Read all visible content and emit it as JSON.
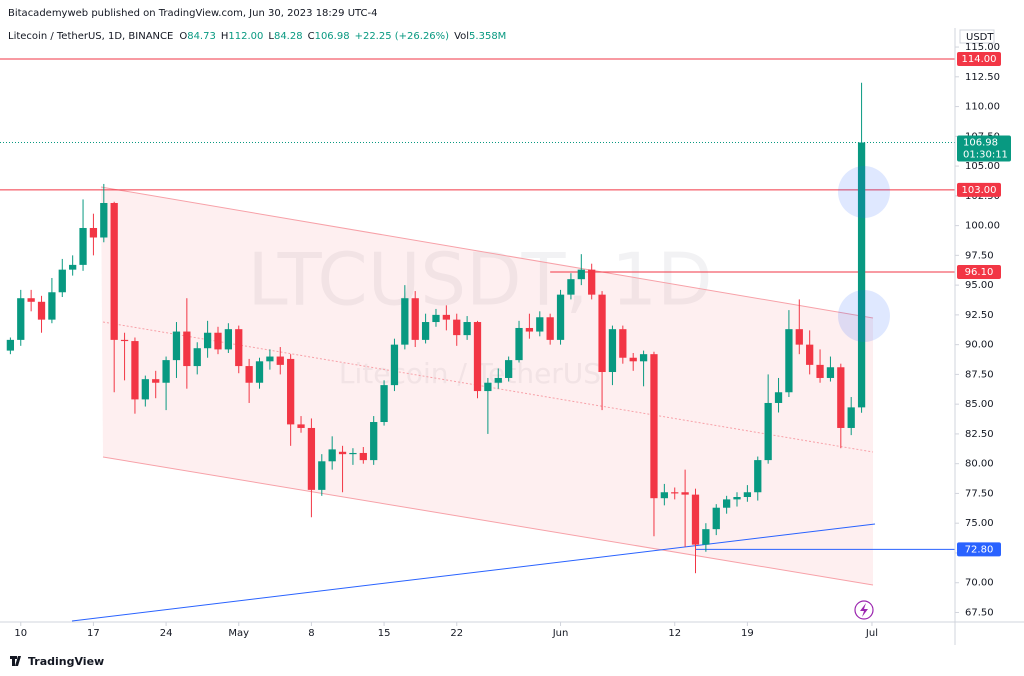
{
  "publisher": "Bitacademyweb published on TradingView.com, Jun 30, 2023 18:29 UTC-4",
  "footer": "TradingView",
  "chart_data": {
    "type": "candlestick",
    "symbol": "Litecoin / TetherUS, 1D, BINANCE",
    "ohlc_labels": [
      "O",
      "H",
      "L",
      "C"
    ],
    "ohlc_values": [
      "84.73",
      "112.00",
      "84.28",
      "106.98"
    ],
    "change": "+22.25 (+26.26%)",
    "volume_label": "Vol",
    "volume": "5.358M",
    "currency": "USDT",
    "watermark": "LTCUSDT, 1D",
    "watermark_sub": "Litecoin / TetherUS",
    "up_color": "#089981",
    "down_color": "#f23645",
    "grid": false,
    "x": [
      "2023-04-09",
      "2023-04-10",
      "2023-04-11",
      "2023-04-12",
      "2023-04-13",
      "2023-04-14",
      "2023-04-15",
      "2023-04-16",
      "2023-04-17",
      "2023-04-18",
      "2023-04-19",
      "2023-04-20",
      "2023-04-21",
      "2023-04-22",
      "2023-04-23",
      "2023-04-24",
      "2023-04-25",
      "2023-04-26",
      "2023-04-27",
      "2023-04-28",
      "2023-04-29",
      "2023-04-30",
      "2023-05-01",
      "2023-05-02",
      "2023-05-03",
      "2023-05-04",
      "2023-05-05",
      "2023-05-06",
      "2023-05-07",
      "2023-05-08",
      "2023-05-09",
      "2023-05-10",
      "2023-05-11",
      "2023-05-12",
      "2023-05-13",
      "2023-05-14",
      "2023-05-15",
      "2023-05-16",
      "2023-05-17",
      "2023-05-18",
      "2023-05-19",
      "2023-05-20",
      "2023-05-21",
      "2023-05-22",
      "2023-05-23",
      "2023-05-24",
      "2023-05-25",
      "2023-05-26",
      "2023-05-27",
      "2023-05-28",
      "2023-05-29",
      "2023-05-30",
      "2023-05-31",
      "2023-06-01",
      "2023-06-02",
      "2023-06-03",
      "2023-06-04",
      "2023-06-05",
      "2023-06-06",
      "2023-06-07",
      "2023-06-08",
      "2023-06-09",
      "2023-06-10",
      "2023-06-11",
      "2023-06-12",
      "2023-06-13",
      "2023-06-14",
      "2023-06-15",
      "2023-06-16",
      "2023-06-17",
      "2023-06-18",
      "2023-06-19",
      "2023-06-20",
      "2023-06-21",
      "2023-06-22",
      "2023-06-23",
      "2023-06-24",
      "2023-06-25",
      "2023-06-26",
      "2023-06-27",
      "2023-06-28",
      "2023-06-29",
      "2023-06-30"
    ],
    "open": [
      89.5,
      90.4,
      93.9,
      93.6,
      92.1,
      94.4,
      96.3,
      96.7,
      99.8,
      99.0,
      101.9,
      90.4,
      90.3,
      85.4,
      87.1,
      86.8,
      88.7,
      91.1,
      88.2,
      89.7,
      91.0,
      89.6,
      91.3,
      88.2,
      86.8,
      88.6,
      89.0,
      88.8,
      83.3,
      83.0,
      77.8,
      80.2,
      81.0,
      80.8,
      80.9,
      80.3,
      83.5,
      86.6,
      90.0,
      93.9,
      90.4,
      91.9,
      92.5,
      92.1,
      90.8,
      91.9,
      86.1,
      86.8,
      87.2,
      88.7,
      91.4,
      91.1,
      92.3,
      90.4,
      94.2,
      95.5,
      96.3,
      94.2,
      87.7,
      91.3,
      88.9,
      88.6,
      89.2,
      77.1,
      77.6,
      77.6,
      77.4,
      73.2,
      74.5,
      76.3,
      77.0,
      77.2,
      77.6,
      80.3,
      85.1,
      86.0,
      91.3,
      90.0,
      88.3,
      87.2,
      88.1,
      83.0,
      84.73
    ],
    "high": [
      90.6,
      94.6,
      94.6,
      94.1,
      95.6,
      97.2,
      97.5,
      102.2,
      101.0,
      103.5,
      102.0,
      91.0,
      90.6,
      87.4,
      87.8,
      89.0,
      91.9,
      93.9,
      90.2,
      92.0,
      91.5,
      91.8,
      91.6,
      88.8,
      88.9,
      89.6,
      89.8,
      89.2,
      84.0,
      83.8,
      80.8,
      82.3,
      81.5,
      81.3,
      81.4,
      84.0,
      87.0,
      90.5,
      95.0,
      94.5,
      92.6,
      93.0,
      93.3,
      92.6,
      92.4,
      92.0,
      87.2,
      88.0,
      89.0,
      92.0,
      92.6,
      92.8,
      92.6,
      94.6,
      96.0,
      97.6,
      96.8,
      94.5,
      91.6,
      91.6,
      89.3,
      89.5,
      89.4,
      78.3,
      78.0,
      79.5,
      77.9,
      75.0,
      76.6,
      77.3,
      77.6,
      78.2,
      80.6,
      87.5,
      87.2,
      92.9,
      93.8,
      91.2,
      89.6,
      89.0,
      88.4,
      85.6,
      112.0
    ],
    "low": [
      89.2,
      89.9,
      92.8,
      91.0,
      91.8,
      94.0,
      95.8,
      96.2,
      97.5,
      98.6,
      86.0,
      87.0,
      84.2,
      84.8,
      85.5,
      84.5,
      87.2,
      86.3,
      87.5,
      88.9,
      89.2,
      89.3,
      87.6,
      85.1,
      86.3,
      87.9,
      87.5,
      81.5,
      82.6,
      75.5,
      77.3,
      79.5,
      77.6,
      79.9,
      80.0,
      79.9,
      83.2,
      86.1,
      89.6,
      89.8,
      90.1,
      91.5,
      91.2,
      89.9,
      90.4,
      85.5,
      82.5,
      86.3,
      86.9,
      88.5,
      90.5,
      90.7,
      90.0,
      90.0,
      93.8,
      95.0,
      93.8,
      84.5,
      86.6,
      88.4,
      87.8,
      86.5,
      73.9,
      76.5,
      77.0,
      73.0,
      70.8,
      72.6,
      74.0,
      75.8,
      76.4,
      76.8,
      76.9,
      80.0,
      84.3,
      85.6,
      89.2,
      87.5,
      86.8,
      86.9,
      81.3,
      82.4,
      84.28
    ],
    "close": [
      90.4,
      93.9,
      93.6,
      92.1,
      94.4,
      96.3,
      96.7,
      99.8,
      99.0,
      101.9,
      90.4,
      90.3,
      85.4,
      87.1,
      86.8,
      88.7,
      91.1,
      88.2,
      89.7,
      91.0,
      89.6,
      91.3,
      88.2,
      86.8,
      88.6,
      89.0,
      88.3,
      83.3,
      83.0,
      77.8,
      80.2,
      81.2,
      80.8,
      80.9,
      80.3,
      83.5,
      86.6,
      90.0,
      93.9,
      90.4,
      91.9,
      92.5,
      92.1,
      90.8,
      91.9,
      86.1,
      86.8,
      87.2,
      88.7,
      91.4,
      91.1,
      92.3,
      90.4,
      94.2,
      95.5,
      96.3,
      94.2,
      87.7,
      91.3,
      88.9,
      88.6,
      89.2,
      77.1,
      77.6,
      77.5,
      77.4,
      73.2,
      74.5,
      76.3,
      77.0,
      77.2,
      77.6,
      80.3,
      85.1,
      86.0,
      91.3,
      90.0,
      88.3,
      87.2,
      88.1,
      83.0,
      84.73,
      106.98
    ],
    "xlim": [
      "2023-04-08",
      "2023-07-09"
    ],
    "xticks": [
      {
        "value": "2023-04-10",
        "label": "10"
      },
      {
        "value": "2023-04-17",
        "label": "17"
      },
      {
        "value": "2023-04-24",
        "label": "24"
      },
      {
        "value": "2023-05-01",
        "label": "May"
      },
      {
        "value": "2023-05-08",
        "label": "8"
      },
      {
        "value": "2023-05-15",
        "label": "15"
      },
      {
        "value": "2023-05-22",
        "label": "22"
      },
      {
        "value": "2023-06-01",
        "label": "Jun"
      },
      {
        "value": "2023-06-12",
        "label": "12"
      },
      {
        "value": "2023-06-19",
        "label": "19"
      },
      {
        "value": "2023-07-01",
        "label": "Jul"
      }
    ],
    "ylim": [
      66.7,
      116.6
    ],
    "yticks": [
      {
        "value": 67.5,
        "label": "67.50"
      },
      {
        "value": 70,
        "label": "70.00"
      },
      {
        "value": 72.5,
        "label": "72.50"
      },
      {
        "value": 75,
        "label": "75.00"
      },
      {
        "value": 77.5,
        "label": "77.50"
      },
      {
        "value": 80,
        "label": "80.00"
      },
      {
        "value": 82.5,
        "label": "82.50"
      },
      {
        "value": 85,
        "label": "85.00"
      },
      {
        "value": 87.5,
        "label": "87.50"
      },
      {
        "value": 90,
        "label": "90.00"
      },
      {
        "value": 92.5,
        "label": "92.50"
      },
      {
        "value": 95,
        "label": "95.00"
      },
      {
        "value": 97.5,
        "label": "97.50"
      },
      {
        "value": 100,
        "label": "100.00"
      },
      {
        "value": 102.5,
        "label": "102.50"
      },
      {
        "value": 105,
        "label": "105.00"
      },
      {
        "value": 107.5,
        "label": "107.50"
      },
      {
        "value": 110,
        "label": "110.00"
      },
      {
        "value": 112.5,
        "label": "112.50"
      },
      {
        "value": 115,
        "label": "115.00"
      }
    ],
    "levels": [
      {
        "value": 114,
        "label": "114.00",
        "color": "#f23645"
      },
      {
        "value": 103,
        "label": "103.00",
        "color": "#f23645"
      },
      {
        "value": 96.1,
        "label": "96.10",
        "color": "#f23645",
        "from": "2023-05-31"
      },
      {
        "value": 72.8,
        "label": "72.80",
        "color": "#2962ff",
        "from": "2023-06-14"
      }
    ],
    "last_price": {
      "value": 106.98,
      "label": "106.98",
      "countdown": "01:30:11"
    }
  }
}
